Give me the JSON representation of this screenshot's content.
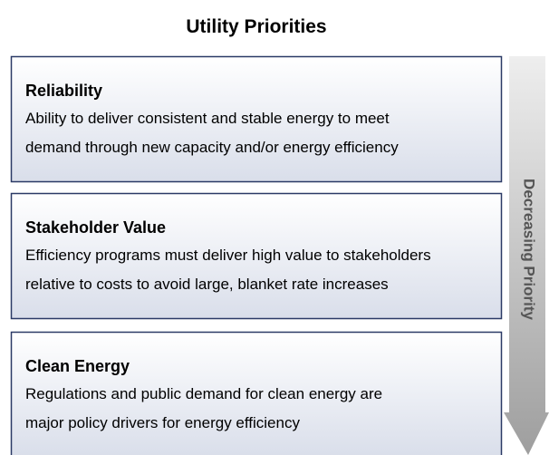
{
  "title": "Utility Priorities",
  "arrow_label": "Decreasing Priority",
  "items": [
    {
      "heading": "Reliability",
      "lines": [
        "Ability to deliver consistent and stable energy to meet",
        "demand through new capacity and/or energy efficiency"
      ]
    },
    {
      "heading": "Stakeholder Value",
      "lines": [
        "Efficiency programs must deliver high value to stakeholders",
        "relative to costs to avoid large, blanket rate increases"
      ]
    },
    {
      "heading": "Clean Energy",
      "lines": [
        "Regulations and public demand for clean energy are",
        "major policy drivers for energy efficiency"
      ]
    }
  ]
}
